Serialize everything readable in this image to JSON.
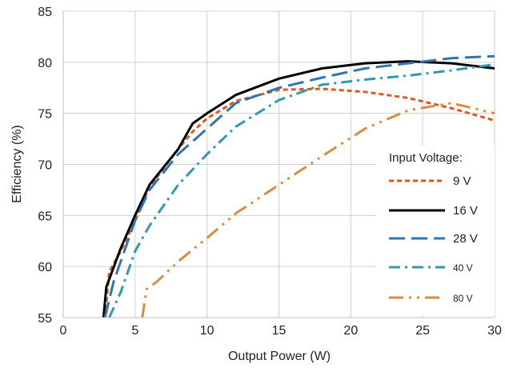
{
  "chart_data": {
    "type": "line",
    "xlabel": "Output Power (W)",
    "ylabel": "Efficiency (%)",
    "xlim": [
      0,
      30
    ],
    "ylim": [
      55,
      85
    ],
    "xticks": [
      0,
      5,
      10,
      15,
      20,
      25,
      30
    ],
    "yticks": [
      55,
      60,
      65,
      70,
      75,
      80,
      85
    ],
    "grid": true,
    "legend": {
      "title": "Input Voltage:",
      "placement": "right"
    },
    "series": [
      {
        "name": "9 V",
        "color": "#E2571E",
        "dash": "short-dash",
        "points": [
          [
            2.9,
            55.0
          ],
          [
            3.2,
            59.5
          ],
          [
            4.0,
            61.5
          ],
          [
            5.0,
            64.5
          ],
          [
            6.0,
            67.8
          ],
          [
            8.0,
            71.5
          ],
          [
            9.0,
            73.2
          ],
          [
            10.0,
            74.5
          ],
          [
            12.0,
            76.2
          ],
          [
            15.0,
            77.3
          ],
          [
            18.0,
            77.4
          ],
          [
            21.0,
            77.1
          ],
          [
            24.0,
            76.5
          ],
          [
            27.0,
            75.5
          ],
          [
            30.0,
            74.3
          ]
        ]
      },
      {
        "name": "16 V",
        "color": "#000000",
        "dash": "solid",
        "points": [
          [
            2.8,
            55.0
          ],
          [
            3.0,
            58.0
          ],
          [
            4.0,
            61.8
          ],
          [
            5.0,
            65.0
          ],
          [
            6.0,
            68.0
          ],
          [
            8.0,
            71.5
          ],
          [
            9.0,
            74.0
          ],
          [
            10.0,
            75.0
          ],
          [
            12.0,
            76.8
          ],
          [
            15.0,
            78.4
          ],
          [
            18.0,
            79.4
          ],
          [
            21.0,
            79.9
          ],
          [
            24.0,
            80.1
          ],
          [
            27.0,
            79.9
          ],
          [
            30.0,
            79.4
          ]
        ]
      },
      {
        "name": "28 V",
        "color": "#2E75B6",
        "dash": "long-dash",
        "points": [
          [
            2.9,
            55.0
          ],
          [
            3.5,
            58.5
          ],
          [
            5.0,
            64.5
          ],
          [
            6.0,
            67.5
          ],
          [
            8.0,
            71.0
          ],
          [
            10.0,
            73.5
          ],
          [
            12.0,
            76.0
          ],
          [
            15.0,
            77.5
          ],
          [
            18.0,
            78.5
          ],
          [
            21.0,
            79.4
          ],
          [
            24.0,
            79.9
          ],
          [
            27.0,
            80.4
          ],
          [
            30.0,
            80.6
          ]
        ]
      },
      {
        "name": "40 V",
        "color": "#2C9CB2",
        "dash": "dash-dot",
        "points": [
          [
            3.2,
            55.0
          ],
          [
            4.0,
            57.5
          ],
          [
            5.0,
            61.5
          ],
          [
            6.0,
            64.0
          ],
          [
            8.0,
            68.0
          ],
          [
            10.0,
            71.0
          ],
          [
            12.0,
            73.7
          ],
          [
            15.0,
            76.3
          ],
          [
            18.0,
            77.8
          ],
          [
            21.0,
            78.3
          ],
          [
            24.0,
            78.7
          ],
          [
            27.0,
            79.2
          ],
          [
            30.0,
            79.8
          ]
        ]
      },
      {
        "name": "80 V",
        "color": "#E08A3C",
        "dash": "dash-dot-dot",
        "points": [
          [
            5.5,
            55.0
          ],
          [
            5.8,
            57.8
          ],
          [
            6.5,
            58.5
          ],
          [
            8.0,
            60.5
          ],
          [
            10.0,
            62.8
          ],
          [
            12.0,
            65.2
          ],
          [
            15.0,
            68.0
          ],
          [
            18.0,
            70.8
          ],
          [
            21.0,
            73.5
          ],
          [
            24.0,
            75.3
          ],
          [
            27.0,
            76.0
          ],
          [
            30.0,
            75.0
          ]
        ]
      }
    ]
  }
}
